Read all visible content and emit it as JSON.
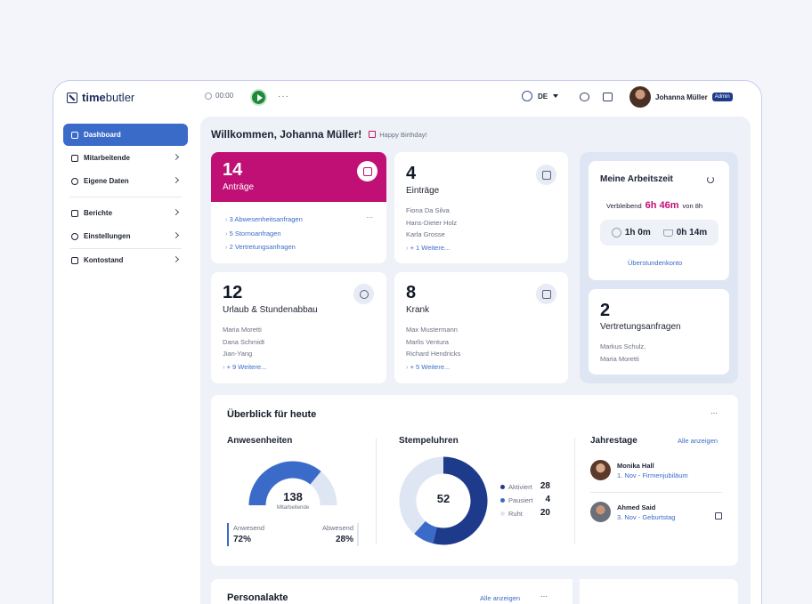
{
  "app": {
    "brand_bold": "time",
    "brand_light": "butler",
    "timer": "00:00",
    "more": "···",
    "language": "DE",
    "user_name": "Johanna Müller",
    "user_role": "Admin"
  },
  "sidebar": {
    "items": [
      {
        "label": "Dashboard"
      },
      {
        "label": "Mitarbeitende"
      },
      {
        "label": "Eigene Daten"
      },
      {
        "label": "Berichte"
      },
      {
        "label": "Einstellungen"
      },
      {
        "label": "Kontostand"
      }
    ]
  },
  "header": {
    "welcome": "Willkommen, Johanna Müller!",
    "birthday": "Happy Birthday!"
  },
  "cards": {
    "antraege": {
      "count": "14",
      "title": "Anträge",
      "menu": "···",
      "links": [
        "3 Abwesenheitsanfragen",
        "5 Stornoanfragen",
        "2 Vertretungsanfragen"
      ]
    },
    "eintraege": {
      "count": "4",
      "title": "Einträge",
      "names": [
        "Fiona Da Silva",
        "Hans-Dieter Holz",
        "Karla Grosse"
      ],
      "more": "+ 1 Weitere..."
    },
    "urlaub": {
      "count": "12",
      "title": "Urlaub & Stundenabbau",
      "names": [
        "Maria Moretti",
        "Dana Schmidt",
        "Jian-Yang"
      ],
      "more": "+ 9 Weitere..."
    },
    "krank": {
      "count": "8",
      "title": "Krank",
      "names": [
        "Max Mustermann",
        "Marlis Ventura",
        "Richard Hendricks"
      ],
      "more": "+ 5 Weitere..."
    }
  },
  "arbeitszeit": {
    "title": "Meine Arbeitszeit",
    "remaining_label": "Verbleibend",
    "remaining": "6h 46m",
    "of": "von 8h",
    "worked": "1h 0m",
    "pause": "0h 14m",
    "link": "Überstundenkonto"
  },
  "vertretung": {
    "count": "2",
    "title": "Vertretungsanfragen",
    "names": [
      "Markus Schulz,",
      "Maria Moretti"
    ]
  },
  "overview": {
    "title": "Überblick für heute",
    "menu": "···",
    "anwesenheiten": {
      "title": "Anwesenheiten",
      "total": "138",
      "total_label": "Mitarbeitende",
      "present_label": "Anwesend",
      "present": "72%",
      "absent_label": "Abwesend",
      "absent": "28%",
      "present_fraction": 0.72
    },
    "stempeluhren": {
      "title": "Stempeluhren",
      "total": "52",
      "items": [
        {
          "label": "Aktiviert",
          "value": "28",
          "color": "#1e3a8a"
        },
        {
          "label": "Pausiert",
          "value": "4",
          "color": "#3b6bc8"
        },
        {
          "label": "Ruht",
          "value": "20",
          "color": "#dfe6f3"
        }
      ]
    },
    "jahrestage": {
      "title": "Jahrestage",
      "link": "Alle anzeigen",
      "people": [
        {
          "name": "Monika Hall",
          "detail": "1. Nov - Firmenjubiläum"
        },
        {
          "name": "Ahmed Said",
          "detail": "3. Nov - Geburtstag"
        }
      ]
    }
  },
  "personalakte": {
    "title": "Personalakte",
    "link": "Alle anzeigen",
    "menu": "···"
  }
}
